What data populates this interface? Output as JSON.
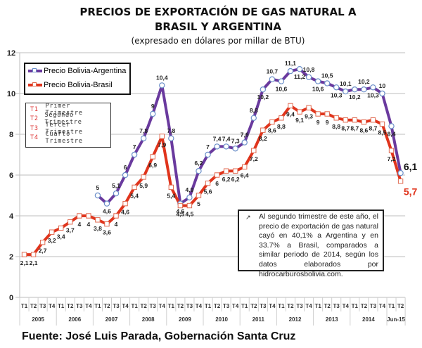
{
  "chart_data": {
    "type": "line",
    "title": "PRECIOS DE EXPORTACIÓN DE GAS NATURAL A BRASIL Y ARGENTINA",
    "title_lines": [
      "PRECIOS DE EXPORTACIÓN DE GAS NATURAL A",
      "BRASIL Y ARGENTINA"
    ],
    "subtitle": "(expresado en dólares por millar de BTU)",
    "xlabel": "",
    "ylabel": "",
    "ylim": [
      0,
      12
    ],
    "yticks": [
      0,
      2,
      4,
      6,
      8,
      10,
      12
    ],
    "grid": true,
    "legend_position": "top-left",
    "x_quarters": [
      "T1",
      "T2",
      "T3",
      "T4",
      "T1",
      "T2",
      "T3",
      "T4",
      "T1",
      "T2",
      "T3",
      "T4",
      "T1",
      "T2",
      "T3",
      "T4",
      "T1",
      "T2",
      "T3",
      "T4",
      "T1",
      "T2",
      "T3",
      "T4",
      "T1",
      "T2",
      "T3",
      "T4",
      "T1",
      "T2",
      "T3",
      "T4",
      "T1",
      "T2",
      "T3",
      "T4",
      "T1",
      "T2",
      "T3",
      "T4",
      "T1",
      "T2"
    ],
    "x_years": [
      {
        "label": "2005",
        "count": 4
      },
      {
        "label": "2006",
        "count": 4
      },
      {
        "label": "2007",
        "count": 4
      },
      {
        "label": "2008",
        "count": 4
      },
      {
        "label": "2009",
        "count": 4
      },
      {
        "label": "2010",
        "count": 4
      },
      {
        "label": "2011",
        "count": 4
      },
      {
        "label": "2012",
        "count": 4
      },
      {
        "label": "2013",
        "count": 4
      },
      {
        "label": "2014",
        "count": 4
      },
      {
        "label": "Jun-15",
        "count": 2
      }
    ],
    "series": [
      {
        "name": "Precio Bolivia-Argentina",
        "color": "#6a3a9e",
        "values": [
          null,
          null,
          null,
          null,
          null,
          null,
          null,
          null,
          5,
          4.6,
          5.1,
          6,
          7,
          7.8,
          9,
          10.4,
          7.8,
          4.6,
          4.9,
          6.2,
          7,
          7.4,
          7.4,
          7.3,
          7.6,
          8.8,
          10.2,
          10.7,
          10.6,
          11.1,
          11.2,
          10.8,
          10.6,
          10.5,
          10.3,
          10.1,
          10.2,
          10.2,
          10.3,
          10,
          8.4,
          6.1
        ],
        "labels": [
          null,
          null,
          null,
          null,
          null,
          null,
          null,
          null,
          "5",
          "4,6",
          "5,1",
          "6",
          "7",
          "7,8",
          "9",
          "10,4",
          "7,8",
          "4,6",
          "4,9",
          "6,2",
          "7",
          "7,4",
          "7,4",
          "7,3",
          "7,6",
          "8,8",
          "10,2",
          "10,7",
          "10,6",
          "11,1",
          "11,2",
          "10,8",
          "10,6",
          "10,5",
          "10,3",
          "10,1",
          "10,2",
          "10,2",
          "10,3",
          "10",
          "8,4",
          "6,1"
        ]
      },
      {
        "name": "Precio Bolivia-Brasil",
        "color": "#e0341c",
        "values": [
          2.1,
          2.1,
          2.7,
          3.2,
          3.4,
          3.7,
          4,
          4,
          3.8,
          3.6,
          4,
          4.6,
          5.4,
          5.9,
          6.9,
          7.9,
          5.4,
          4.5,
          4.5,
          5,
          5.6,
          6,
          6.2,
          6.2,
          6.4,
          7.2,
          8.2,
          8.6,
          8.8,
          9.4,
          9.1,
          9.3,
          9,
          9,
          8.8,
          8.7,
          8.7,
          8.6,
          8.7,
          8.5,
          7.2,
          5.7
        ],
        "labels": [
          "2,1",
          "2,1",
          "2,7",
          "3,2",
          "3,4",
          "3,7",
          "4",
          "4",
          "3,8",
          "3,6",
          "4",
          "4,6",
          "5,4",
          "5,9",
          "6,9",
          "7,9",
          "5,4",
          "4,5",
          "4,5",
          "5",
          "5,6",
          "6",
          "6,2",
          "6,2",
          "6,4",
          "7,2",
          "8,2",
          "8,6",
          "8,8",
          "9,4",
          "9,1",
          "9,3",
          "9",
          "9",
          "8,8",
          "8,7",
          "8,7",
          "8,6",
          "8,7",
          "8,5",
          "7,2",
          "5,7"
        ]
      }
    ],
    "quarter_legend": [
      {
        "code": "T1",
        "label": "Primer Trimestre"
      },
      {
        "code": "T2",
        "label": "Segundo Trimestre"
      },
      {
        "code": "T3",
        "label": "Tercer Trimestre"
      },
      {
        "code": "T4",
        "label": "Cuarto Trimestre"
      }
    ],
    "annotation": "Al segundo trimestre de este año, el precio de exportación de gas natural cayó en 40,1% a Argentina y en 33.7% a Brasil, comparados a similar periodo de 2014, según los datos elaborados por hidrocarburosbolivia.com."
  },
  "footer": "Fuente: José Luis Parada, Gobernación Santa Cruz"
}
